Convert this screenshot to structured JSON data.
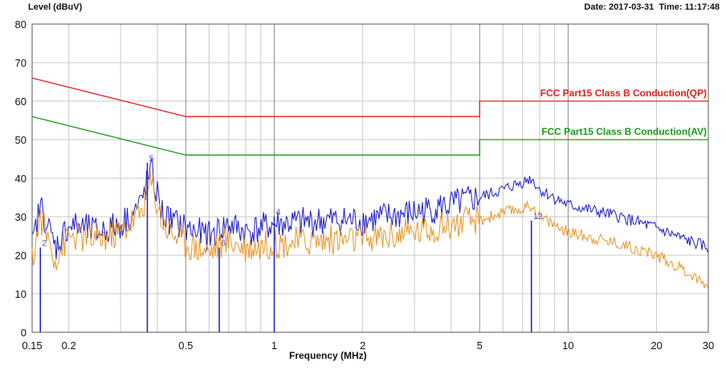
{
  "chart_data": {
    "type": "line",
    "title": "",
    "ylabel": "Level (dBuV)",
    "xlabel": "Frequency (MHz)",
    "date_label": "Date: 2017-03-31",
    "time_label": "Time: 11:17:48",
    "x_scale": "log",
    "xlim": [
      0.15,
      30
    ],
    "ylim": [
      0,
      80
    ],
    "grid": true,
    "x_ticks": [
      0.15,
      0.2,
      0.5,
      1,
      2,
      5,
      10,
      20,
      30
    ],
    "x_tick_labels": [
      "0.15",
      "0.2",
      "0.5",
      "1",
      "2",
      "5",
      "10",
      "20",
      "30"
    ],
    "y_ticks": [
      0,
      10,
      20,
      30,
      40,
      50,
      60,
      70,
      80
    ],
    "y_tick_labels": [
      "0",
      "10",
      "20",
      "30",
      "40",
      "50",
      "60",
      "70",
      "80"
    ],
    "series": [
      {
        "name": "FCC Part15 Class B Conduction(QP)",
        "color": "#e02020",
        "style": "limit",
        "x": [
          0.15,
          0.5,
          0.5,
          5,
          5,
          30
        ],
        "y": [
          66,
          56,
          56,
          56,
          60,
          60
        ]
      },
      {
        "name": "FCC Part15 Class B Conduction(AV)",
        "color": "#1a9a1a",
        "style": "limit",
        "x": [
          0.15,
          0.5,
          0.5,
          5,
          5,
          30
        ],
        "y": [
          56,
          46,
          46,
          46,
          50,
          50
        ]
      },
      {
        "color": "#1a1acc",
        "style": "trace",
        "x": [
          0.15,
          0.16,
          0.18,
          0.2,
          0.25,
          0.3,
          0.35,
          0.38,
          0.42,
          0.5,
          0.6,
          0.7,
          0.8,
          1.0,
          1.5,
          2,
          3,
          4,
          5,
          6,
          7,
          7.5,
          8,
          10,
          15,
          20,
          25,
          30
        ],
        "y": [
          22,
          33,
          22,
          28,
          26,
          28,
          33,
          42,
          30,
          27,
          25,
          28,
          26,
          28,
          29,
          29,
          31,
          33,
          35,
          37,
          39,
          40,
          37,
          33,
          30,
          27,
          24,
          22
        ]
      },
      {
        "color": "#e8962a",
        "style": "trace",
        "x": [
          0.15,
          0.16,
          0.18,
          0.2,
          0.25,
          0.3,
          0.35,
          0.38,
          0.42,
          0.5,
          0.6,
          0.7,
          0.8,
          1.0,
          1.5,
          2,
          3,
          4,
          5,
          6,
          7,
          7.5,
          8,
          10,
          15,
          20,
          25,
          30
        ],
        "y": [
          18,
          30,
          19,
          25,
          24,
          26,
          31,
          39,
          28,
          23,
          21,
          24,
          22,
          23,
          24,
          24,
          26,
          28,
          29,
          31,
          32,
          33,
          30,
          26,
          23,
          20,
          16,
          12
        ]
      }
    ],
    "markers": [
      {
        "x": 0.16,
        "y": 22,
        "label": "2"
      },
      {
        "x": 0.37,
        "y": 44,
        "label": "5"
      },
      {
        "x": 0.65,
        "y": 22,
        "label": "6"
      },
      {
        "x": 1.0,
        "y": 30,
        "label": "4"
      },
      {
        "x": 7.5,
        "y": 29,
        "label": "12"
      }
    ]
  }
}
